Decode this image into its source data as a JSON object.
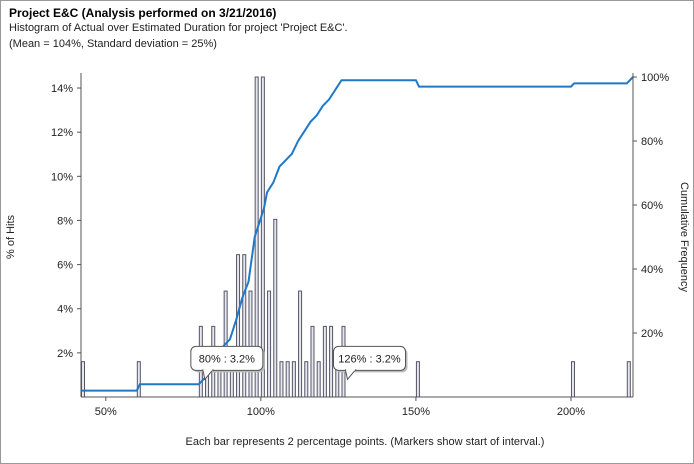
{
  "header": {
    "title": "Project E&C (Analysis performed on 3/21/2016)",
    "subtitle": "Histogram of Actual over Estimated Duration for project 'Project E&C'.",
    "stats": "(Mean = 104%, Standard deviation = 25%)"
  },
  "chart_data": {
    "type": "bar",
    "title": "Project E&C (Analysis performed on 3/21/2016)",
    "xlabel": "Each bar represents 2 percentage points. (Markers show start of interval.)",
    "ylabel": "% of Hits",
    "y2label": "Cumulative Frequency",
    "xlim": [
      42,
      220
    ],
    "ylim": [
      0,
      14.5
    ],
    "y2lim": [
      0,
      100
    ],
    "xticks": [
      50,
      100,
      150,
      200
    ],
    "xtick_labels": [
      "50%",
      "100%",
      "150%",
      "200%"
    ],
    "yticks": [
      2,
      4,
      6,
      8,
      10,
      12,
      14
    ],
    "ytick_labels": [
      "2%",
      "4%",
      "6%",
      "8%",
      "10%",
      "12%",
      "14%"
    ],
    "y2ticks": [
      20,
      40,
      60,
      80,
      100
    ],
    "y2tick_labels": [
      "20%",
      "40%",
      "60%",
      "80%",
      "100%"
    ],
    "grid": false,
    "legend": "none",
    "bar_color": "#e6e6f0",
    "bar_edge_color": "#555566",
    "line_color": "#1f78c8",
    "histogram": {
      "x": [
        42,
        60,
        80,
        82,
        84,
        86,
        88,
        90,
        92,
        94,
        96,
        98,
        100,
        102,
        104,
        106,
        108,
        110,
        112,
        114,
        116,
        118,
        120,
        122,
        124,
        126,
        150,
        200,
        218
      ],
      "values": [
        1.6,
        1.6,
        3.2,
        1.6,
        3.2,
        1.6,
        4.8,
        1.6,
        6.45,
        6.45,
        4.8,
        14.5,
        14.5,
        4.8,
        8.05,
        1.6,
        1.6,
        1.6,
        4.8,
        1.6,
        3.2,
        1.6,
        3.2,
        3.2,
        1.6,
        3.2,
        1.6,
        1.6,
        1.6
      ]
    },
    "cumulative": {
      "x": [
        42,
        60,
        61,
        80,
        82,
        84,
        86,
        88,
        90,
        92,
        94,
        96,
        98,
        100,
        101,
        102,
        104,
        106,
        108,
        110,
        112,
        114,
        116,
        118,
        120,
        122,
        124,
        126,
        128,
        150,
        151,
        200,
        201,
        218,
        220
      ],
      "values": [
        2,
        2,
        4,
        4,
        6,
        9,
        11,
        16,
        18,
        24,
        31,
        36,
        50,
        56,
        59,
        64,
        67,
        72,
        74,
        76,
        80,
        83,
        86,
        88,
        91,
        93,
        96,
        99,
        99,
        99,
        97,
        97,
        98,
        98,
        100
      ]
    },
    "annotations": [
      {
        "x": 80,
        "y": 3.2,
        "text": "80% : 3.2%"
      },
      {
        "x": 126,
        "y": 3.2,
        "text": "126% : 3.2%"
      }
    ]
  }
}
